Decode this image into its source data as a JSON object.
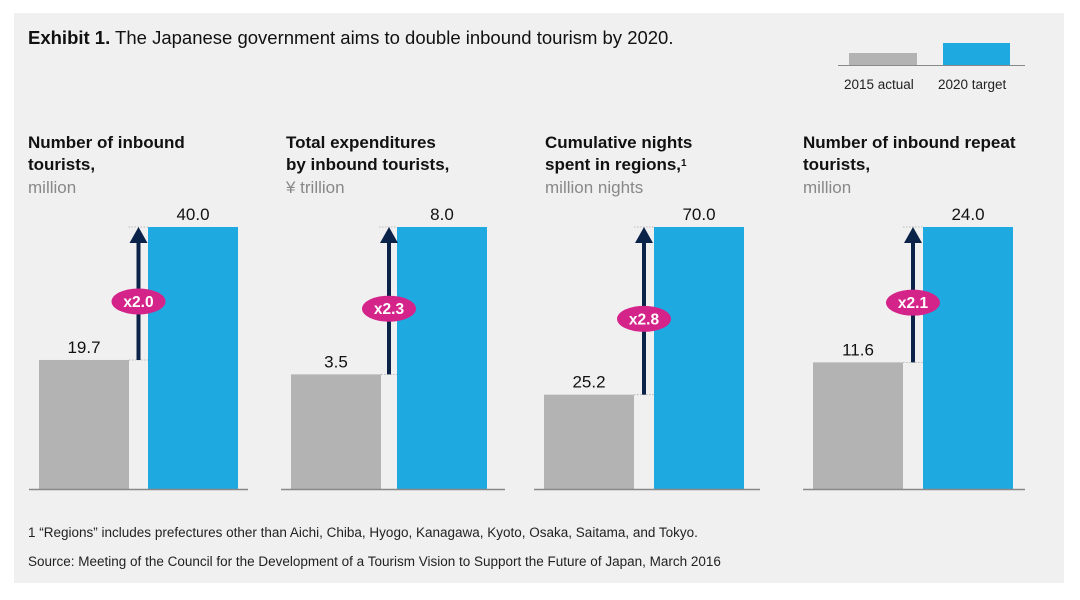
{
  "title": {
    "bold": "Exhibit 1.",
    "rest": " The Japanese government aims to double inbound tourism by 2020."
  },
  "colors": {
    "actual": "#b3b3b3",
    "target": "#1eaae1",
    "arrow": "#0b2348",
    "badge": "#d4248a",
    "axis": "#888888",
    "background": "#f0f0f0"
  },
  "legend": {
    "items": [
      {
        "label": "2015 actual"
      },
      {
        "label": "2020 target"
      }
    ]
  },
  "panels": [
    {
      "title_lines": [
        "Number of inbound",
        "tourists,"
      ],
      "footnote_ref": "",
      "unit": "million"
    },
    {
      "title_lines": [
        "Total expenditures",
        "by inbound tourists,"
      ],
      "footnote_ref": "",
      "unit": "¥ trillion"
    },
    {
      "title_lines": [
        "Cumulative nights",
        "spent in regions,"
      ],
      "footnote_ref": "1",
      "unit": "million nights"
    },
    {
      "title_lines": [
        "Number of inbound repeat",
        "tourists,"
      ],
      "footnote_ref": "",
      "unit": "million"
    }
  ],
  "footnotes": {
    "note1": "1 “Regions” includes prefectures other than Aichi, Chiba, Hyogo, Kanagawa, Kyoto, Osaka, Saitama, and Tokyo.",
    "source": "Source: Meeting of the Council for the Development of a Tourism Vision to Support the Future of Japan, March 2016"
  },
  "chart_data": [
    {
      "type": "bar",
      "title": "Number of inbound tourists, million",
      "categories": [
        "2015 actual",
        "2020 target"
      ],
      "values": [
        19.7,
        40.0
      ],
      "labels": [
        "19.7",
        "40.0"
      ],
      "multiplier": "x2.0"
    },
    {
      "type": "bar",
      "title": "Total expenditures by inbound tourists, ¥ trillion",
      "categories": [
        "2015 actual",
        "2020 target"
      ],
      "values": [
        3.5,
        8.0
      ],
      "labels": [
        "3.5",
        "8.0"
      ],
      "multiplier": "x2.3"
    },
    {
      "type": "bar",
      "title": "Cumulative nights spent in regions, million nights",
      "categories": [
        "2015 actual",
        "2020 target"
      ],
      "values": [
        25.2,
        70.0
      ],
      "labels": [
        "25.2",
        "70.0"
      ],
      "multiplier": "x2.8"
    },
    {
      "type": "bar",
      "title": "Number of inbound repeat tourists, million",
      "categories": [
        "2015 actual",
        "2020 target"
      ],
      "values": [
        11.6,
        24.0
      ],
      "labels": [
        "11.6",
        "24.0"
      ],
      "multiplier": "x2.1"
    }
  ]
}
